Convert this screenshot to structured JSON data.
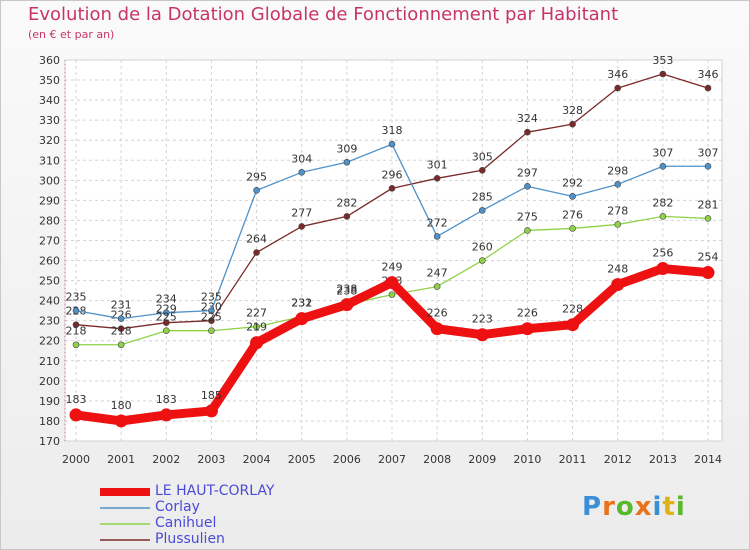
{
  "title": "Evolution de la Dotation Globale de Fonctionnement par Habitant",
  "subtitle": "(en € et par an)",
  "brand": "Proxiti",
  "chart_data": {
    "type": "line",
    "title": "Evolution de la Dotation Globale de Fonctionnement par Habitant",
    "ylabel": "(en € et par an)",
    "xlabel": "",
    "categories": [
      "2000",
      "2001",
      "2002",
      "2003",
      "2004",
      "2005",
      "2006",
      "2007",
      "2008",
      "2009",
      "2010",
      "2011",
      "2012",
      "2013",
      "2014"
    ],
    "ylim": [
      170,
      360
    ],
    "yticks": [
      170,
      180,
      190,
      200,
      210,
      220,
      230,
      240,
      250,
      260,
      270,
      280,
      290,
      300,
      310,
      320,
      330,
      340,
      350,
      360
    ],
    "grid": true,
    "legend_position": "bottom-left",
    "series": [
      {
        "name": "Plussulien",
        "color": "#7a2a2a",
        "values": [
          228,
          226,
          229,
          230,
          264,
          277,
          282,
          296,
          301,
          305,
          324,
          328,
          346,
          353,
          346
        ]
      },
      {
        "name": "Corlay",
        "color": "#4f91c9",
        "values": [
          235,
          231,
          234,
          235,
          295,
          304,
          309,
          318,
          272,
          285,
          297,
          292,
          298,
          307,
          307
        ]
      },
      {
        "name": "Canihuel",
        "color": "#8fd24a",
        "values": [
          218,
          218,
          225,
          225,
          227,
          232,
          238,
          243,
          247,
          260,
          275,
          276,
          278,
          282,
          281
        ]
      },
      {
        "name": "LE HAUT-CORLAY",
        "color": "#ee1111",
        "values": [
          183,
          180,
          183,
          185,
          219,
          231,
          238,
          249,
          226,
          223,
          226,
          228,
          248,
          256,
          254
        ]
      }
    ]
  }
}
